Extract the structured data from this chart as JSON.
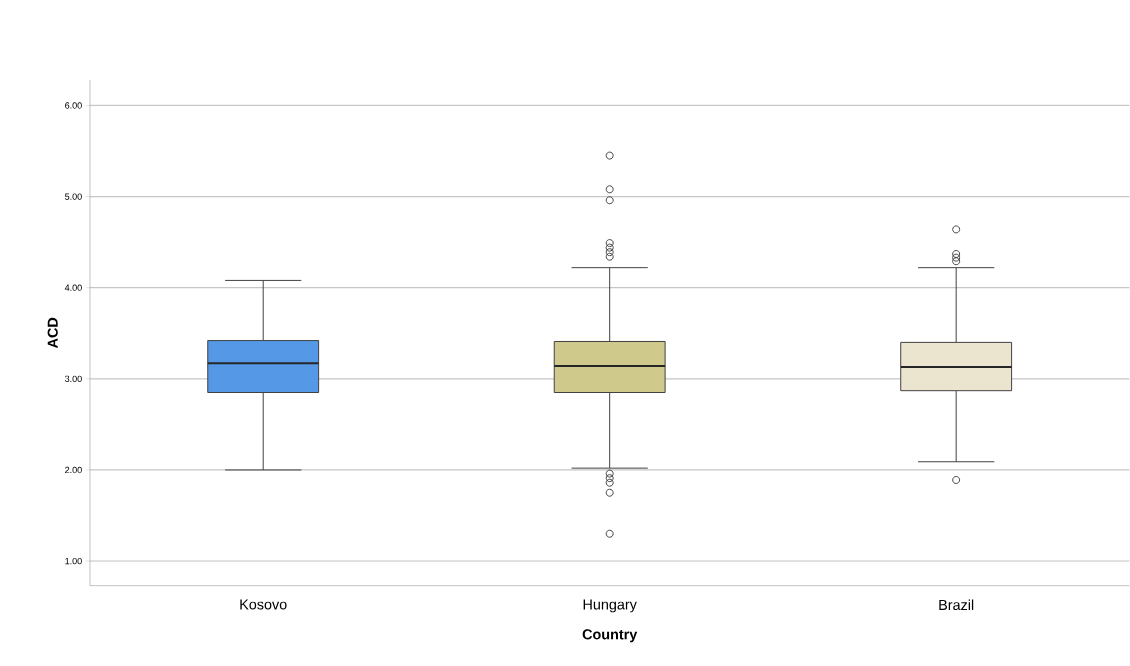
{
  "chart_data": {
    "type": "box",
    "xlabel": "Country",
    "ylabel": "ACD",
    "categories": [
      "Kosovo",
      "Hungary",
      "Brazil"
    ],
    "colors": [
      "#5598e6",
      "#cfca8c",
      "#ebe4cf"
    ],
    "boxes": [
      {
        "low": 2.0,
        "q1": 2.85,
        "median": 3.17,
        "q3": 3.42,
        "high": 4.08
      },
      {
        "low": 2.02,
        "q1": 2.85,
        "median": 3.14,
        "q3": 3.41,
        "high": 4.22,
        "outliers": [
          5.45,
          5.08,
          4.96,
          4.49,
          4.44,
          4.39,
          4.34,
          1.96,
          1.91,
          1.86,
          1.75,
          1.3
        ]
      },
      {
        "low": 2.09,
        "q1": 2.87,
        "median": 3.13,
        "q3": 3.4,
        "high": 4.22,
        "outliers": [
          4.64,
          4.37,
          4.33,
          4.29,
          1.89
        ]
      }
    ],
    "ylim": [
      0.73,
      6.28
    ],
    "yticks": [
      {
        "value": 1,
        "label": "1.00"
      },
      {
        "value": 2,
        "label": "2.00"
      },
      {
        "value": 3,
        "label": "3.00"
      },
      {
        "value": 4,
        "label": "4.00"
      },
      {
        "value": 5,
        "label": "5.00"
      },
      {
        "value": 6,
        "label": "6.00"
      }
    ],
    "grid": "y"
  }
}
